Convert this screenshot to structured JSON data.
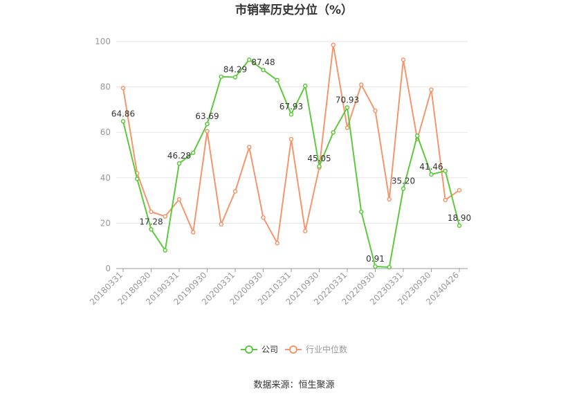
{
  "chart_data": {
    "type": "line",
    "title": "市销率历史分位（%）",
    "ylim": [
      0,
      100
    ],
    "yticks": [
      0,
      20,
      40,
      60,
      80,
      100
    ],
    "x_tick_labels": [
      "20180331",
      "20180930",
      "20190331",
      "20190930",
      "20200331",
      "20200930",
      "20210331",
      "20210930",
      "20220331",
      "20220930",
      "20230331",
      "20230930",
      "20240426"
    ],
    "series": [
      {
        "name": "公司",
        "color": "#5cc93c",
        "values": [
          64.86,
          39.5,
          17.28,
          8.0,
          46.28,
          51.0,
          63.69,
          84.5,
          84.29,
          92.0,
          87.48,
          83.0,
          67.93,
          80.5,
          45.05,
          60.0,
          70.93,
          25.0,
          0.91,
          0.6,
          35.2,
          58.5,
          41.46,
          43.0,
          18.9
        ],
        "labels": {
          "0": "64.86",
          "2": "17.28",
          "4": "46.28",
          "6": "63.69",
          "8": "84.29",
          "10": "87.48",
          "12": "67.93",
          "14": "45.05",
          "16": "70.93",
          "18": "0.91",
          "20": "35.20",
          "22": "41.46",
          "24": "18.90"
        }
      },
      {
        "name": "行业中位数",
        "color": "#f5956b",
        "values": [
          79.5,
          42.0,
          25.0,
          23.0,
          30.5,
          16.0,
          60.5,
          19.5,
          34.0,
          53.5,
          22.5,
          11.2,
          57.0,
          16.5,
          44.5,
          98.5,
          62.0,
          81.0,
          69.5,
          30.5,
          92.0,
          57.0,
          78.8,
          30.2,
          34.5
        ]
      }
    ],
    "legend": {
      "position": "bottom-center",
      "items": [
        "公司",
        "行业中位数"
      ]
    },
    "grid": true
  },
  "source": "数据来源：恒生聚源"
}
